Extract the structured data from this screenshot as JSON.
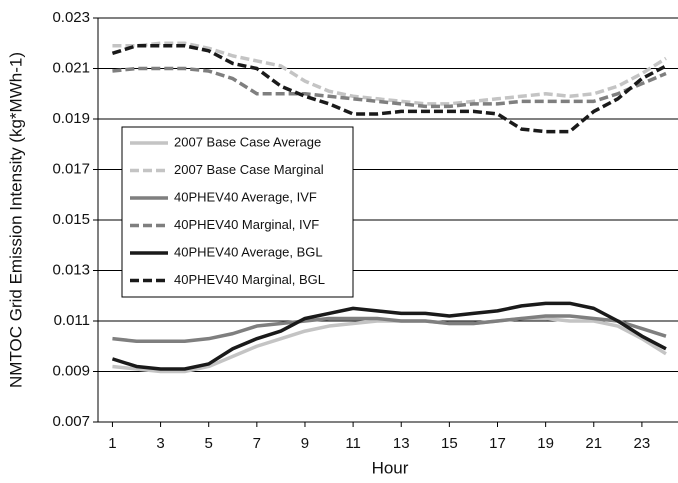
{
  "chart_data": {
    "type": "line",
    "x_label": "Hour",
    "y_label": "NMTOC Grid Emission Intensity (kg*MWh-1)",
    "x": [
      1,
      2,
      3,
      4,
      5,
      6,
      7,
      8,
      9,
      10,
      11,
      12,
      13,
      14,
      15,
      16,
      17,
      18,
      19,
      20,
      21,
      22,
      23,
      24
    ],
    "xlim": [
      0.4,
      24.5
    ],
    "xticks": [
      1,
      3,
      5,
      7,
      9,
      11,
      13,
      15,
      17,
      19,
      21,
      23
    ],
    "ylim": [
      0.007,
      0.023
    ],
    "yticks": [
      0.007,
      0.009,
      0.011,
      0.013,
      0.015,
      0.017,
      0.019,
      0.021,
      0.023
    ],
    "grid": true,
    "legend": "upper left",
    "series": [
      {
        "name": "2007 Base Case Average",
        "color": "#c4c4c4",
        "dash": false,
        "values": [
          0.0092,
          0.0091,
          0.009,
          0.009,
          0.0092,
          0.0096,
          0.01,
          0.0103,
          0.0106,
          0.0108,
          0.0109,
          0.011,
          0.011,
          0.011,
          0.0109,
          0.0109,
          0.011,
          0.0111,
          0.0111,
          0.011,
          0.011,
          0.0108,
          0.0103,
          0.0097
        ]
      },
      {
        "name": "2007 Base Case Marginal",
        "color": "#c4c4c4",
        "dash": true,
        "values": [
          0.0219,
          0.0219,
          0.022,
          0.022,
          0.0218,
          0.0215,
          0.0213,
          0.0211,
          0.0205,
          0.0201,
          0.0199,
          0.0198,
          0.0197,
          0.0196,
          0.0196,
          0.0197,
          0.0198,
          0.0199,
          0.02,
          0.0199,
          0.02,
          0.0203,
          0.0208,
          0.0214
        ]
      },
      {
        "name": "40PHEV40 Average, IVF",
        "color": "#7f7f7f",
        "dash": false,
        "values": [
          0.0103,
          0.0102,
          0.0102,
          0.0102,
          0.0103,
          0.0105,
          0.0108,
          0.0109,
          0.011,
          0.0111,
          0.0111,
          0.0111,
          0.011,
          0.011,
          0.0109,
          0.0109,
          0.011,
          0.0111,
          0.0112,
          0.0112,
          0.0111,
          0.011,
          0.0107,
          0.0104
        ]
      },
      {
        "name": "40PHEV40 Marginal, IVF",
        "color": "#7f7f7f",
        "dash": true,
        "values": [
          0.0209,
          0.021,
          0.021,
          0.021,
          0.0209,
          0.0206,
          0.02,
          0.02,
          0.02,
          0.0199,
          0.0198,
          0.0197,
          0.0196,
          0.0195,
          0.0195,
          0.0196,
          0.0196,
          0.0197,
          0.0197,
          0.0197,
          0.0197,
          0.02,
          0.0204,
          0.0208
        ]
      },
      {
        "name": "40PHEV40 Average, BGL",
        "color": "#1a1a1a",
        "dash": false,
        "values": [
          0.0095,
          0.0092,
          0.0091,
          0.0091,
          0.0093,
          0.0099,
          0.0103,
          0.0106,
          0.0111,
          0.0113,
          0.0115,
          0.0114,
          0.0113,
          0.0113,
          0.0112,
          0.0113,
          0.0114,
          0.0116,
          0.0117,
          0.0117,
          0.0115,
          0.011,
          0.0104,
          0.0099
        ]
      },
      {
        "name": "40PHEV40 Marginal, BGL",
        "color": "#1a1a1a",
        "dash": true,
        "values": [
          0.0216,
          0.0219,
          0.0219,
          0.0219,
          0.0217,
          0.0212,
          0.021,
          0.0203,
          0.0199,
          0.0196,
          0.0192,
          0.0192,
          0.0193,
          0.0193,
          0.0193,
          0.0193,
          0.0192,
          0.0186,
          0.0185,
          0.0185,
          0.0193,
          0.0198,
          0.0206,
          0.0211
        ]
      }
    ]
  }
}
